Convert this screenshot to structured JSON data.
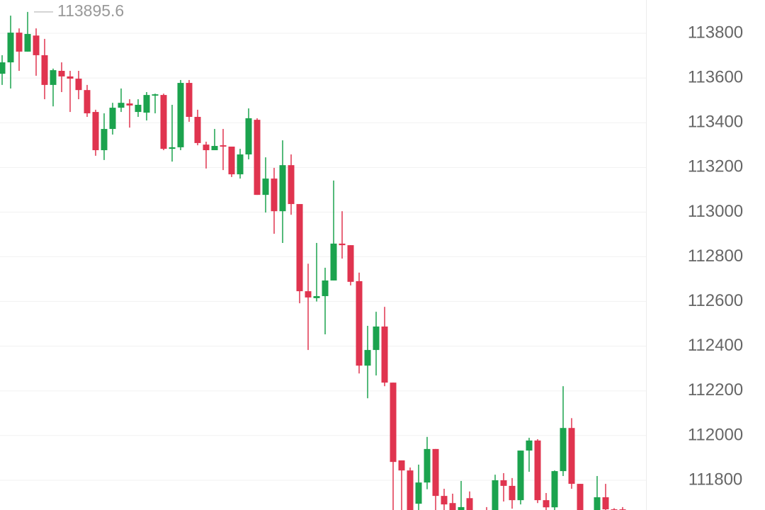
{
  "chart_data": {
    "type": "candlestick",
    "up_color": "#1ba34e",
    "down_color": "#e0344f",
    "ylim": [
      111667,
      113949
    ],
    "yticks": [
      113800,
      113600,
      113400,
      113200,
      113000,
      112800,
      112600,
      112400,
      112200,
      112000,
      111800
    ],
    "grid": true,
    "high_marker": 113895.6,
    "open": [
      113619,
      113670,
      113803,
      113718,
      113790,
      113702,
      113569,
      113632,
      113607,
      113597,
      113546,
      113448,
      113277,
      113372,
      113467,
      113486,
      113448,
      113445,
      113521,
      113524,
      113283,
      113290,
      113578,
      113426,
      113302,
      113277,
      113299,
      113293,
      113169,
      113258,
      113413,
      113077,
      113150,
      113004,
      113210,
      113036,
      112646,
      112615,
      112624,
      112694,
      112859,
      112852,
      112691,
      112313,
      112383,
      112488,
      112237,
      111889,
      111844,
      111695,
      111790,
      111940,
      111730,
      111698,
      111640,
      111720,
      111640,
      111660,
      111650,
      111800,
      111775,
      111711,
      111933,
      111978,
      111711,
      111679,
      111841,
      112034,
      111784,
      111650,
      111660,
      111724,
      111670,
      111670
    ],
    "high": [
      113702,
      113879,
      113822,
      113895.6,
      113822,
      113775,
      113642,
      113670,
      113632,
      113632,
      113569,
      113458,
      113442,
      113489,
      113553,
      113505,
      113505,
      113537,
      113530,
      113530,
      113480,
      113591,
      113591,
      113458,
      113315,
      113372,
      113372,
      113293,
      113283,
      113464,
      113420,
      113245,
      113198,
      113321,
      113258,
      113036,
      112769,
      112862,
      112751,
      113141,
      113004,
      112852,
      112729,
      112491,
      112554,
      112576,
      112237,
      111889,
      111857,
      111870,
      111994,
      111940,
      111762,
      111740,
      111797,
      111750,
      111650,
      111680,
      111825,
      111832,
      111810,
      111933,
      111990,
      111984,
      111743,
      111844,
      112221,
      112078,
      111784,
      111660,
      111819,
      111784,
      111675,
      111680
    ],
    "low": [
      113569,
      113553,
      113632,
      113718,
      113610,
      113505,
      113473,
      113537,
      113448,
      113505,
      113426,
      113252,
      113233,
      113347,
      113448,
      113378,
      113426,
      113410,
      113442,
      113277,
      113226,
      113277,
      113404,
      113299,
      113195,
      113277,
      113188,
      113157,
      113150,
      113236,
      113077,
      112998,
      112903,
      112862,
      112988,
      112592,
      112383,
      112600,
      112453,
      112694,
      112792,
      112672,
      112278,
      112167,
      112269,
      112221,
      111650,
      111650,
      111640,
      111660,
      111760,
      111650,
      111660,
      111640,
      111620,
      111630,
      111600,
      111620,
      111630,
      111705,
      111673,
      111692,
      111838,
      111698,
      111655,
      111660,
      111819,
      111762,
      111640,
      111620,
      111640,
      111650,
      111640,
      111620
    ],
    "close": [
      113670,
      113803,
      113718,
      113797,
      113702,
      113569,
      113635,
      113607,
      113597,
      113546,
      113442,
      113277,
      113372,
      113467,
      113489,
      113477,
      113480,
      113524,
      113527,
      113283,
      113290,
      113578,
      113426,
      113309,
      113277,
      113296,
      113293,
      113169,
      113258,
      113420,
      113077,
      113150,
      113004,
      113210,
      113036,
      112646,
      112618,
      112624,
      112694,
      112859,
      112852,
      112688,
      112313,
      112383,
      112488,
      112237,
      111882,
      111844,
      111660,
      111790,
      111940,
      111730,
      111692,
      111660,
      111680,
      111650,
      111630,
      111640,
      111800,
      111775,
      111711,
      111933,
      111978,
      111711,
      111679,
      111841,
      112034,
      111784,
      111660,
      111640,
      111724,
      111670,
      111660,
      111640
    ]
  }
}
